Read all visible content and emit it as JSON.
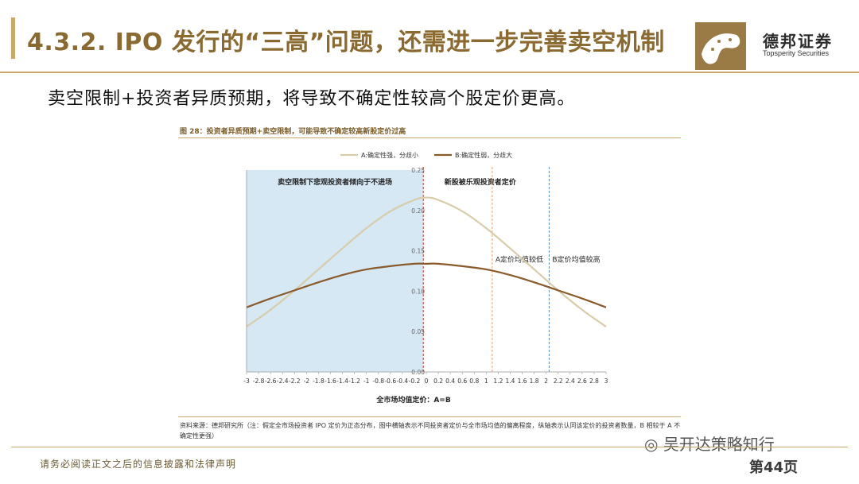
{
  "header": {
    "title": "4.3.2. IPO 发行的“三高”问题，还需进一步完善卖空机制",
    "logo_cn": "德邦证券",
    "logo_en": "Topsperity Securities"
  },
  "subtitle": "卖空限制+投资者异质预期，将导致不确定性较高个股定价更高。",
  "figure": {
    "title": "图 28：投资者异质预期+卖空限制，可能导致不确定较高新股定价过高",
    "source": "资料来源：德邦研究所（注：假定全市场投资者 IPO 定价为正态分布，图中横轴表示不同投资者定价与全市场均值的偏离程度，纵轴表示认同该定价的投资者数量，B 相较于 A 不确定性更强）"
  },
  "chart_data": {
    "type": "line",
    "title": "",
    "xlabel": "全市场均值定价：A=B",
    "ylabel": "",
    "xlim": [
      -3,
      3
    ],
    "ylim": [
      0,
      0.25
    ],
    "x_ticks": [
      "-3",
      "-2.8",
      "-2.6",
      "-2.4",
      "-2.2",
      "-2",
      "-1.8",
      "-1.6",
      "-1.4",
      "-1.2",
      "-1",
      "-0.8",
      "-0.6",
      "-0.4",
      "-0.2",
      "0",
      "0.2",
      "0.4",
      "0.6",
      "0.8",
      "1",
      "1.2",
      "1.4",
      "1.6",
      "1.8",
      "2",
      "2.2",
      "2.4",
      "2.6",
      "2.8",
      "3"
    ],
    "y_ticks": [
      "0.00",
      "0.05",
      "0.10",
      "0.15",
      "0.20",
      "0.25"
    ],
    "grid": false,
    "legend_position": "top",
    "series": [
      {
        "name": "A:确定性强，分歧小",
        "color": "#d8ccaa",
        "x": [
          -3,
          -2.6,
          -2.2,
          -1.8,
          -1.4,
          -1,
          -0.6,
          -0.2,
          0,
          0.2,
          0.6,
          1,
          1.4,
          1.8,
          2.2,
          2.6,
          3
        ],
        "y": [
          0.056,
          0.077,
          0.101,
          0.127,
          0.153,
          0.178,
          0.199,
          0.213,
          0.216,
          0.213,
          0.199,
          0.178,
          0.153,
          0.127,
          0.101,
          0.077,
          0.056
        ]
      },
      {
        "name": "B:确定性弱，分歧大",
        "color": "#8b5a2b",
        "x": [
          -3,
          -2.6,
          -2.2,
          -1.8,
          -1.4,
          -1,
          -0.6,
          -0.2,
          0,
          0.2,
          0.6,
          1,
          1.4,
          1.8,
          2.2,
          2.6,
          3
        ],
        "y": [
          0.08,
          0.091,
          0.101,
          0.111,
          0.12,
          0.127,
          0.131,
          0.134,
          0.134,
          0.134,
          0.131,
          0.127,
          0.12,
          0.111,
          0.101,
          0.091,
          0.08
        ]
      }
    ],
    "shaded_region": {
      "x_from": -3,
      "x_to": -0.05,
      "label": "卖空限制下悲观投资者倾向于不进场",
      "color": "#d6e8f4"
    },
    "region_label_right": "新股被乐观投资者定价",
    "vlines": [
      {
        "x": -0.05,
        "color": "#c0392b",
        "label": ""
      },
      {
        "x": 1.1,
        "color": "#e8a070",
        "label": "A定价均值较低"
      },
      {
        "x": 2.05,
        "color": "#5b8fc9",
        "label": "B定价均值较高"
      }
    ]
  },
  "footer": {
    "disclaimer": "请务必阅读正文之后的信息披露和法律声明",
    "wechat": "吴开达策略知行",
    "page": "第44页"
  }
}
